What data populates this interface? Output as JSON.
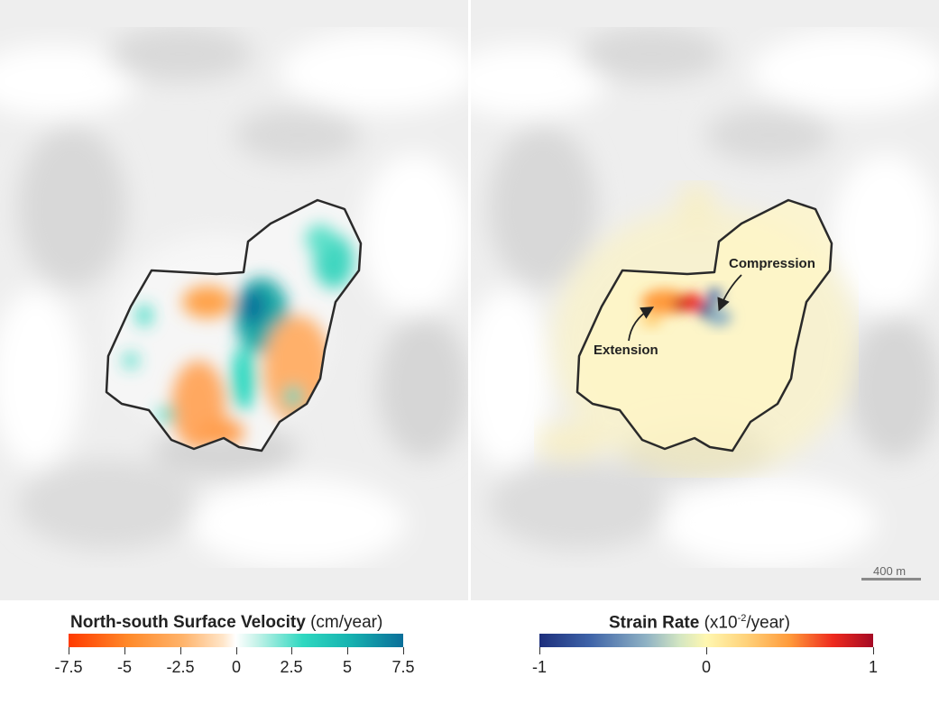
{
  "left_map": {
    "legend": {
      "title_bold": "North-south Surface Velocity",
      "title_unit": "(cm/year)",
      "ticks": [
        "-7.5",
        "-5",
        "-2.5",
        "0",
        "2.5",
        "5",
        "7.5"
      ],
      "colors": [
        "#ff3a00",
        "#ffb36a",
        "#ffffff",
        "#2fd8c0",
        "#0b6f9a"
      ]
    }
  },
  "right_map": {
    "legend": {
      "title_bold": "Strain Rate",
      "title_unit_prefix": "(x10",
      "title_unit_exp": "-2",
      "title_unit_suffix": "/year)",
      "ticks": [
        "-1",
        "0",
        "1"
      ],
      "colors": [
        "#1d2f7c",
        "#fff7b0",
        "#a50a24"
      ]
    },
    "annotations": {
      "compression": "Compression",
      "extension": "Extension"
    },
    "scale_bar": {
      "label": "400 m"
    }
  }
}
